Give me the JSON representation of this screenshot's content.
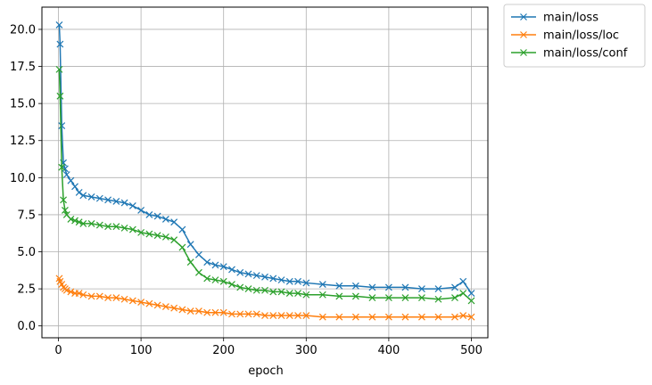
{
  "chart_data": {
    "type": "line",
    "title": "",
    "xlabel": "epoch",
    "ylabel": "",
    "xlim": [
      -20,
      520
    ],
    "ylim": [
      -0.8,
      21.5
    ],
    "xticks": [
      0,
      100,
      200,
      300,
      400,
      500
    ],
    "xtick_labels": [
      "0",
      "100",
      "200",
      "300",
      "400",
      "500"
    ],
    "yticks": [
      0,
      2.5,
      5,
      7.5,
      10,
      12.5,
      15,
      17.5,
      20
    ],
    "ytick_labels": [
      "0.0",
      "2.5",
      "5.0",
      "7.5",
      "10.0",
      "12.5",
      "15.0",
      "17.5",
      "20.0"
    ],
    "grid": true,
    "legend_position": "outside-top-right",
    "marker": "x",
    "series": [
      {
        "name": "main/loss",
        "color": "#1f77b4",
        "x": [
          1,
          2,
          4,
          6,
          8,
          10,
          15,
          20,
          25,
          30,
          40,
          50,
          60,
          70,
          80,
          90,
          100,
          110,
          120,
          130,
          140,
          150,
          160,
          170,
          180,
          190,
          200,
          210,
          220,
          230,
          240,
          250,
          260,
          270,
          280,
          290,
          300,
          320,
          340,
          360,
          380,
          400,
          420,
          440,
          460,
          480,
          490,
          500
        ],
        "y": [
          20.3,
          19.0,
          13.5,
          11.0,
          10.6,
          10.2,
          9.8,
          9.4,
          9.0,
          8.8,
          8.7,
          8.6,
          8.5,
          8.4,
          8.3,
          8.1,
          7.8,
          7.5,
          7.4,
          7.2,
          7.0,
          6.5,
          5.5,
          4.8,
          4.3,
          4.1,
          4.0,
          3.8,
          3.6,
          3.5,
          3.4,
          3.3,
          3.2,
          3.1,
          3.0,
          3.0,
          2.9,
          2.8,
          2.7,
          2.7,
          2.6,
          2.6,
          2.6,
          2.5,
          2.5,
          2.6,
          3.0,
          2.2
        ]
      },
      {
        "name": "main/loss/loc",
        "color": "#ff7f0e",
        "x": [
          1,
          2,
          4,
          6,
          8,
          10,
          15,
          20,
          25,
          30,
          40,
          50,
          60,
          70,
          80,
          90,
          100,
          110,
          120,
          130,
          140,
          150,
          160,
          170,
          180,
          190,
          200,
          210,
          220,
          230,
          240,
          250,
          260,
          270,
          280,
          290,
          300,
          320,
          340,
          360,
          380,
          400,
          420,
          440,
          460,
          480,
          490,
          500
        ],
        "y": [
          3.2,
          3.0,
          2.8,
          2.6,
          2.5,
          2.4,
          2.3,
          2.2,
          2.2,
          2.1,
          2.0,
          2.0,
          1.9,
          1.9,
          1.8,
          1.7,
          1.6,
          1.5,
          1.4,
          1.3,
          1.2,
          1.1,
          1.0,
          1.0,
          0.9,
          0.9,
          0.9,
          0.8,
          0.8,
          0.8,
          0.8,
          0.7,
          0.7,
          0.7,
          0.7,
          0.7,
          0.7,
          0.6,
          0.6,
          0.6,
          0.6,
          0.6,
          0.6,
          0.6,
          0.6,
          0.6,
          0.7,
          0.6
        ]
      },
      {
        "name": "main/loss/conf",
        "color": "#2ca02c",
        "x": [
          1,
          2,
          4,
          6,
          8,
          10,
          15,
          20,
          25,
          30,
          40,
          50,
          60,
          70,
          80,
          90,
          100,
          110,
          120,
          130,
          140,
          150,
          160,
          170,
          180,
          190,
          200,
          210,
          220,
          230,
          240,
          250,
          260,
          270,
          280,
          290,
          300,
          320,
          340,
          360,
          380,
          400,
          420,
          440,
          460,
          480,
          490,
          500
        ],
        "y": [
          17.3,
          15.5,
          10.7,
          8.5,
          7.8,
          7.5,
          7.2,
          7.1,
          7.0,
          6.9,
          6.9,
          6.8,
          6.7,
          6.7,
          6.6,
          6.5,
          6.3,
          6.2,
          6.1,
          6.0,
          5.8,
          5.3,
          4.3,
          3.6,
          3.2,
          3.1,
          3.0,
          2.8,
          2.6,
          2.5,
          2.4,
          2.4,
          2.3,
          2.3,
          2.2,
          2.2,
          2.1,
          2.1,
          2.0,
          2.0,
          1.9,
          1.9,
          1.9,
          1.9,
          1.8,
          1.9,
          2.2,
          1.7
        ]
      }
    ]
  }
}
